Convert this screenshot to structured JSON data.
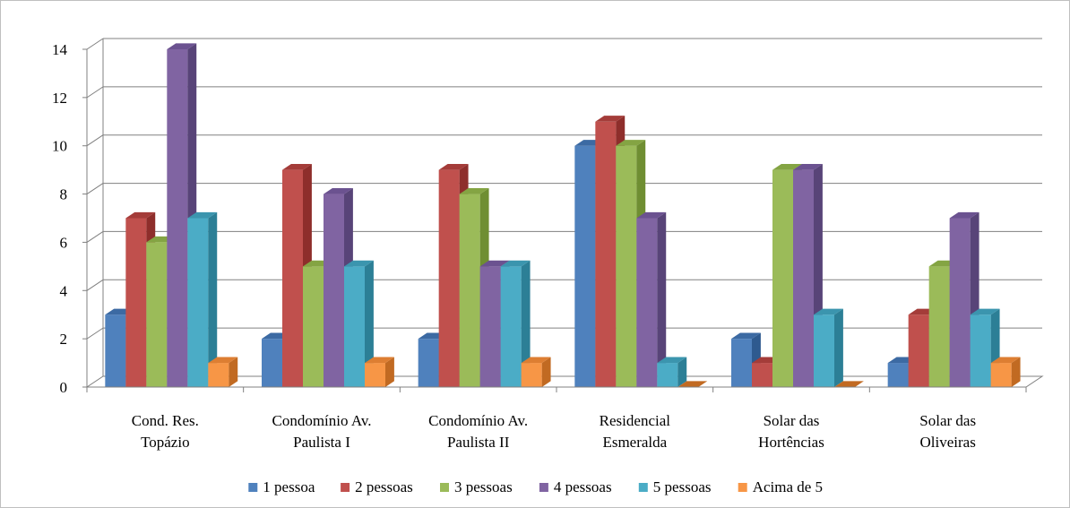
{
  "chart_data": {
    "type": "bar",
    "title": "",
    "xlabel": "",
    "ylabel": "",
    "ylim": [
      0,
      14
    ],
    "ytick_step": 2,
    "yticks": [
      "0",
      "2",
      "4",
      "6",
      "8",
      "10",
      "12",
      "14"
    ],
    "grid": true,
    "legend_position": "bottom",
    "style": "3d-clustered-column",
    "categories": [
      [
        "Cond. Res.",
        "Topázio"
      ],
      [
        "Condomínio Av.",
        "Paulista I"
      ],
      [
        "Condomínio Av.",
        "Paulista II"
      ],
      [
        "Residencial",
        "Esmeralda"
      ],
      [
        "Solar das",
        "Hortências"
      ],
      [
        "Solar das",
        "Oliveiras"
      ]
    ],
    "series": [
      {
        "name": "1 pessoa",
        "color": "#4f81bd",
        "side": "#2e5a8f",
        "top": "#3c6aa3",
        "values": [
          3,
          2,
          2,
          10,
          2,
          1
        ]
      },
      {
        "name": "2 pessoas",
        "color": "#c0504d",
        "side": "#8e2e2b",
        "top": "#a43c39",
        "values": [
          7,
          9,
          9,
          11,
          1,
          3
        ]
      },
      {
        "name": "3 pessoas",
        "color": "#9bbb59",
        "side": "#6f8e32",
        "top": "#84a443",
        "values": [
          6,
          5,
          8,
          10,
          9,
          5
        ]
      },
      {
        "name": "4 pessoas",
        "color": "#8064a2",
        "side": "#584478",
        "top": "#6b5290",
        "values": [
          14,
          8,
          5,
          7,
          9,
          7
        ]
      },
      {
        "name": "5 pessoas",
        "color": "#4bacc6",
        "side": "#2c7f96",
        "top": "#3b95ae",
        "values": [
          7,
          5,
          5,
          1,
          3,
          3
        ]
      },
      {
        "name": "Acima de 5",
        "color": "#f79646",
        "side": "#c16a22",
        "top": "#dd7e32",
        "values": [
          1,
          1,
          1,
          0,
          0,
          1
        ]
      }
    ]
  }
}
